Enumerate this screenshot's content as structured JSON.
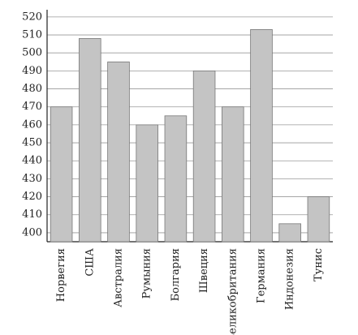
{
  "chart_data": {
    "type": "bar",
    "categories": [
      "Норвегия",
      "США",
      "Австралия",
      "Румыния",
      "Болгария",
      "Швеция",
      "Великобритания",
      "Германия",
      "Индонезия",
      "Тунис"
    ],
    "values": [
      470,
      508,
      495,
      460,
      465,
      490,
      470,
      513,
      405,
      420
    ],
    "color": "#c4c4c4",
    "ylim": [
      395,
      524
    ],
    "yticks": [
      400,
      410,
      420,
      430,
      440,
      450,
      460,
      470,
      480,
      490,
      500,
      510,
      520
    ],
    "grid": true
  }
}
